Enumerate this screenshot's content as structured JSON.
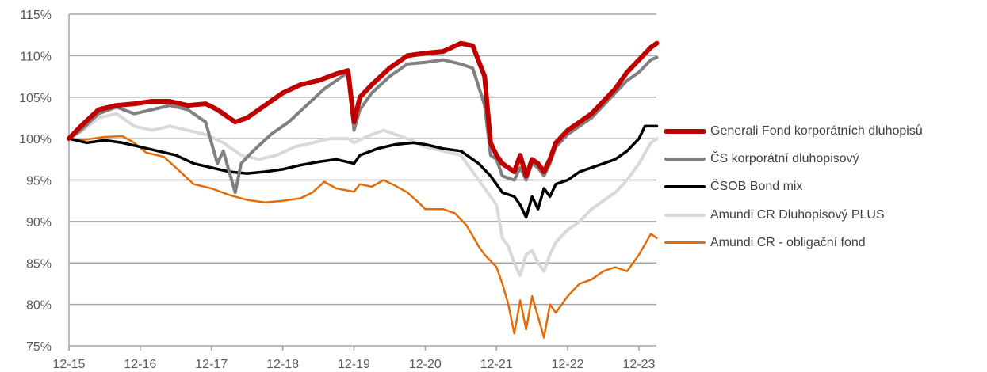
{
  "chart_data": {
    "type": "line",
    "title": "",
    "xlabel": "",
    "ylabel": "",
    "x_ticks": [
      "12-15",
      "12-16",
      "12-17",
      "12-18",
      "12-19",
      "12-20",
      "12-21",
      "12-22",
      "12-23"
    ],
    "xlim": [
      "2015-12",
      "2024-03"
    ],
    "y_ticks": [
      "75%",
      "80%",
      "85%",
      "90%",
      "95%",
      "100%",
      "105%",
      "110%",
      "115%"
    ],
    "ylim": [
      75,
      115
    ],
    "grid": "horizontal",
    "legend_position": "right",
    "series": [
      {
        "name": "Amundi CR - obligační fond",
        "color": "#E36C09",
        "points": [
          [
            "2015-12",
            100
          ],
          [
            "2016-02",
            99.8
          ],
          [
            "2016-06",
            100.2
          ],
          [
            "2016-09",
            100.3
          ],
          [
            "2016-11",
            99.5
          ],
          [
            "2017-01",
            98.3
          ],
          [
            "2017-04",
            97.8
          ],
          [
            "2017-06",
            96.5
          ],
          [
            "2017-09",
            94.5
          ],
          [
            "2017-12",
            94
          ],
          [
            "2018-03",
            93.2
          ],
          [
            "2018-06",
            92.6
          ],
          [
            "2018-09",
            92.3
          ],
          [
            "2018-12",
            92.5
          ],
          [
            "2019-03",
            92.8
          ],
          [
            "2019-05",
            93.5
          ],
          [
            "2019-07",
            94.8
          ],
          [
            "2019-09",
            94
          ],
          [
            "2019-12",
            93.6
          ],
          [
            "2020-01",
            94.5
          ],
          [
            "2020-03",
            94.2
          ],
          [
            "2020-05",
            95
          ],
          [
            "2020-07",
            94.3
          ],
          [
            "2020-09",
            93.5
          ],
          [
            "2020-11",
            92.2
          ],
          [
            "2020-12",
            91.5
          ],
          [
            "2021-03",
            91.5
          ],
          [
            "2021-05",
            91
          ],
          [
            "2021-07",
            89.5
          ],
          [
            "2021-09",
            87
          ],
          [
            "2021-10",
            86
          ],
          [
            "2021-12",
            84.5
          ],
          [
            "2022-01",
            82.5
          ],
          [
            "2022-02",
            80
          ],
          [
            "2022-03",
            76.5
          ],
          [
            "2022-04",
            80.5
          ],
          [
            "2022-05",
            77
          ],
          [
            "2022-06",
            81
          ],
          [
            "2022-07",
            78.5
          ],
          [
            "2022-08",
            76
          ],
          [
            "2022-09",
            80
          ],
          [
            "2022-10",
            79
          ],
          [
            "2022-12",
            81
          ],
          [
            "2023-02",
            82.5
          ],
          [
            "2023-04",
            83
          ],
          [
            "2023-06",
            84
          ],
          [
            "2023-08",
            84.5
          ],
          [
            "2023-10",
            84
          ],
          [
            "2023-12",
            86
          ],
          [
            "2024-02",
            88.5
          ],
          [
            "2024-03",
            88
          ]
        ]
      },
      {
        "name": "Amundi CR Dluhopisový PLUS",
        "color": "#D9D9D9",
        "points": [
          [
            "2015-12",
            100
          ],
          [
            "2016-02",
            100.8
          ],
          [
            "2016-05",
            102.5
          ],
          [
            "2016-08",
            103
          ],
          [
            "2016-11",
            101.5
          ],
          [
            "2017-02",
            101
          ],
          [
            "2017-05",
            101.5
          ],
          [
            "2017-08",
            101
          ],
          [
            "2017-11",
            100.5
          ],
          [
            "2018-02",
            99.5
          ],
          [
            "2018-05",
            98
          ],
          [
            "2018-08",
            97.5
          ],
          [
            "2018-11",
            98
          ],
          [
            "2019-02",
            99
          ],
          [
            "2019-05",
            99.5
          ],
          [
            "2019-08",
            100
          ],
          [
            "2019-11",
            100
          ],
          [
            "2019-12",
            99.5
          ],
          [
            "2020-02",
            100.2
          ],
          [
            "2020-05",
            101
          ],
          [
            "2020-09",
            100
          ],
          [
            "2020-12",
            99
          ],
          [
            "2021-03",
            98.5
          ],
          [
            "2021-06",
            98
          ],
          [
            "2021-09",
            95
          ],
          [
            "2021-11",
            93
          ],
          [
            "2021-12",
            92
          ],
          [
            "2022-01",
            88
          ],
          [
            "2022-02",
            87
          ],
          [
            "2022-03",
            85
          ],
          [
            "2022-04",
            83.5
          ],
          [
            "2022-05",
            86
          ],
          [
            "2022-06",
            86.5
          ],
          [
            "2022-07",
            85
          ],
          [
            "2022-08",
            84
          ],
          [
            "2022-09",
            86
          ],
          [
            "2022-10",
            87.5
          ],
          [
            "2022-12",
            89
          ],
          [
            "2023-02",
            90
          ],
          [
            "2023-04",
            91.5
          ],
          [
            "2023-06",
            92.5
          ],
          [
            "2023-08",
            93.5
          ],
          [
            "2023-10",
            95
          ],
          [
            "2023-12",
            97
          ],
          [
            "2024-02",
            99.5
          ],
          [
            "2024-03",
            100
          ]
        ]
      },
      {
        "name": "ČSOB Bond mix",
        "color": "#000000",
        "points": [
          [
            "2015-12",
            100
          ],
          [
            "2016-03",
            99.5
          ],
          [
            "2016-06",
            99.8
          ],
          [
            "2016-09",
            99.5
          ],
          [
            "2016-12",
            99
          ],
          [
            "2017-03",
            98.5
          ],
          [
            "2017-06",
            98
          ],
          [
            "2017-09",
            97
          ],
          [
            "2017-12",
            96.5
          ],
          [
            "2018-03",
            96
          ],
          [
            "2018-06",
            95.8
          ],
          [
            "2018-09",
            96
          ],
          [
            "2018-12",
            96.3
          ],
          [
            "2019-03",
            96.8
          ],
          [
            "2019-06",
            97.2
          ],
          [
            "2019-09",
            97.5
          ],
          [
            "2019-12",
            97
          ],
          [
            "2020-01",
            98
          ],
          [
            "2020-04",
            98.8
          ],
          [
            "2020-07",
            99.3
          ],
          [
            "2020-10",
            99.5
          ],
          [
            "2020-12",
            99.3
          ],
          [
            "2021-03",
            98.8
          ],
          [
            "2021-06",
            98.5
          ],
          [
            "2021-09",
            97
          ],
          [
            "2021-11",
            95.5
          ],
          [
            "2021-12",
            94.5
          ],
          [
            "2022-01",
            93.5
          ],
          [
            "2022-03",
            93
          ],
          [
            "2022-04",
            92
          ],
          [
            "2022-05",
            90.5
          ],
          [
            "2022-06",
            93
          ],
          [
            "2022-07",
            91.5
          ],
          [
            "2022-08",
            94
          ],
          [
            "2022-09",
            93
          ],
          [
            "2022-10",
            94.5
          ],
          [
            "2022-12",
            95
          ],
          [
            "2023-02",
            96
          ],
          [
            "2023-04",
            96.5
          ],
          [
            "2023-06",
            97
          ],
          [
            "2023-08",
            97.5
          ],
          [
            "2023-10",
            98.5
          ],
          [
            "2023-12",
            100
          ],
          [
            "2024-01",
            101.5
          ],
          [
            "2024-03",
            101.5
          ]
        ]
      },
      {
        "name": "ČS korporátní dluhopisový",
        "color": "#808080",
        "points": [
          [
            "2015-12",
            100
          ],
          [
            "2016-02",
            101
          ],
          [
            "2016-05",
            103
          ],
          [
            "2016-08",
            103.8
          ],
          [
            "2016-11",
            103
          ],
          [
            "2017-02",
            103.5
          ],
          [
            "2017-05",
            104
          ],
          [
            "2017-08",
            103.5
          ],
          [
            "2017-11",
            102
          ],
          [
            "2017-12",
            99.5
          ],
          [
            "2018-01",
            97
          ],
          [
            "2018-02",
            98.5
          ],
          [
            "2018-03",
            96
          ],
          [
            "2018-04",
            93.5
          ],
          [
            "2018-05",
            97
          ],
          [
            "2018-07",
            98.5
          ],
          [
            "2018-10",
            100.5
          ],
          [
            "2019-01",
            102
          ],
          [
            "2019-04",
            104
          ],
          [
            "2019-07",
            106
          ],
          [
            "2019-10",
            107.5
          ],
          [
            "2019-11",
            108
          ],
          [
            "2019-12",
            101
          ],
          [
            "2020-01",
            103.5
          ],
          [
            "2020-03",
            105.5
          ],
          [
            "2020-06",
            107.5
          ],
          [
            "2020-09",
            109
          ],
          [
            "2020-12",
            109.2
          ],
          [
            "2021-03",
            109.5
          ],
          [
            "2021-06",
            109
          ],
          [
            "2021-08",
            108.5
          ],
          [
            "2021-10",
            104
          ],
          [
            "2021-11",
            98
          ],
          [
            "2021-12",
            97.5
          ],
          [
            "2022-01",
            95.5
          ],
          [
            "2022-03",
            95
          ],
          [
            "2022-04",
            96.5
          ],
          [
            "2022-05",
            95
          ],
          [
            "2022-06",
            97
          ],
          [
            "2022-07",
            96.5
          ],
          [
            "2022-08",
            95.5
          ],
          [
            "2022-09",
            97
          ],
          [
            "2022-10",
            99
          ],
          [
            "2022-12",
            100.5
          ],
          [
            "2023-02",
            101.5
          ],
          [
            "2023-04",
            102.5
          ],
          [
            "2023-06",
            104
          ],
          [
            "2023-08",
            105.5
          ],
          [
            "2023-10",
            107
          ],
          [
            "2023-12",
            108
          ],
          [
            "2024-02",
            109.5
          ],
          [
            "2024-03",
            109.8
          ]
        ]
      },
      {
        "name": "Generali Fond korporátních dluhopisů",
        "color": "#C00000",
        "points": [
          [
            "2015-12",
            100
          ],
          [
            "2016-02",
            101.5
          ],
          [
            "2016-05",
            103.5
          ],
          [
            "2016-08",
            104
          ],
          [
            "2016-11",
            104.2
          ],
          [
            "2017-02",
            104.5
          ],
          [
            "2017-05",
            104.5
          ],
          [
            "2017-08",
            104
          ],
          [
            "2017-11",
            104.2
          ],
          [
            "2018-01",
            103.5
          ],
          [
            "2018-04",
            102
          ],
          [
            "2018-06",
            102.5
          ],
          [
            "2018-09",
            104
          ],
          [
            "2018-12",
            105.5
          ],
          [
            "2019-03",
            106.5
          ],
          [
            "2019-06",
            107
          ],
          [
            "2019-09",
            107.8
          ],
          [
            "2019-11",
            108.2
          ],
          [
            "2019-12",
            102
          ],
          [
            "2020-01",
            105
          ],
          [
            "2020-03",
            106.5
          ],
          [
            "2020-06",
            108.5
          ],
          [
            "2020-09",
            110
          ],
          [
            "2020-12",
            110.3
          ],
          [
            "2021-03",
            110.5
          ],
          [
            "2021-06",
            111.5
          ],
          [
            "2021-08",
            111.2
          ],
          [
            "2021-10",
            107.5
          ],
          [
            "2021-11",
            99.5
          ],
          [
            "2021-12",
            98
          ],
          [
            "2022-01",
            97
          ],
          [
            "2022-03",
            96
          ],
          [
            "2022-04",
            98
          ],
          [
            "2022-05",
            95.5
          ],
          [
            "2022-06",
            97.5
          ],
          [
            "2022-07",
            97
          ],
          [
            "2022-08",
            96
          ],
          [
            "2022-09",
            97.5
          ],
          [
            "2022-10",
            99.5
          ],
          [
            "2022-12",
            101
          ],
          [
            "2023-02",
            102
          ],
          [
            "2023-04",
            103
          ],
          [
            "2023-06",
            104.5
          ],
          [
            "2023-08",
            106
          ],
          [
            "2023-10",
            108
          ],
          [
            "2023-12",
            109.5
          ],
          [
            "2024-02",
            111
          ],
          [
            "2024-03",
            111.5
          ]
        ]
      }
    ],
    "legend_order": [
      "Generali Fond korporátních dluhopisů",
      "ČS korporátní dluhopisový",
      "ČSOB Bond mix",
      "Amundi CR Dluhopisový PLUS",
      "Amundi CR - obligační fond"
    ],
    "grid_color": "#A6A6A6",
    "axis_color": "#A6A6A6"
  }
}
